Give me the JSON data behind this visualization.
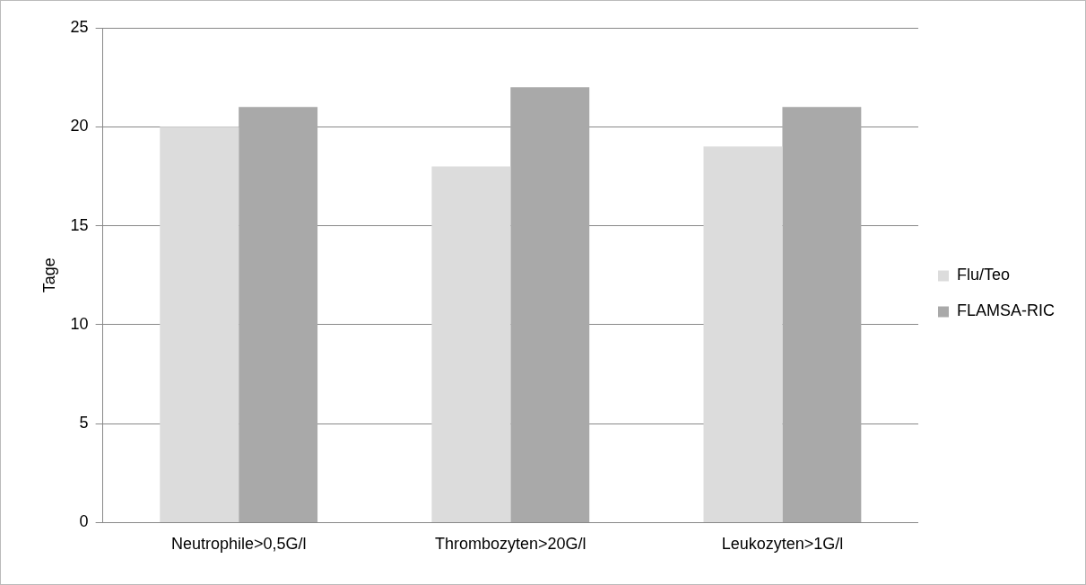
{
  "chart_data": {
    "type": "bar",
    "ylabel": "Tage",
    "categories": [
      "Neutrophile>0,5G/l",
      "Thrombozyten>20G/l",
      "Leukozyten>1G/l"
    ],
    "series": [
      {
        "name": "Flu/Teo",
        "color": "#dcdcdc",
        "values": [
          20,
          18,
          19
        ]
      },
      {
        "name": "FLAMSA-RIC",
        "color": "#a9a9a9",
        "values": [
          21,
          22,
          21
        ]
      }
    ],
    "ylim": [
      0,
      25
    ],
    "yticks": [
      0,
      5,
      10,
      15,
      20,
      25
    ],
    "grid": "y",
    "legend": "right"
  }
}
